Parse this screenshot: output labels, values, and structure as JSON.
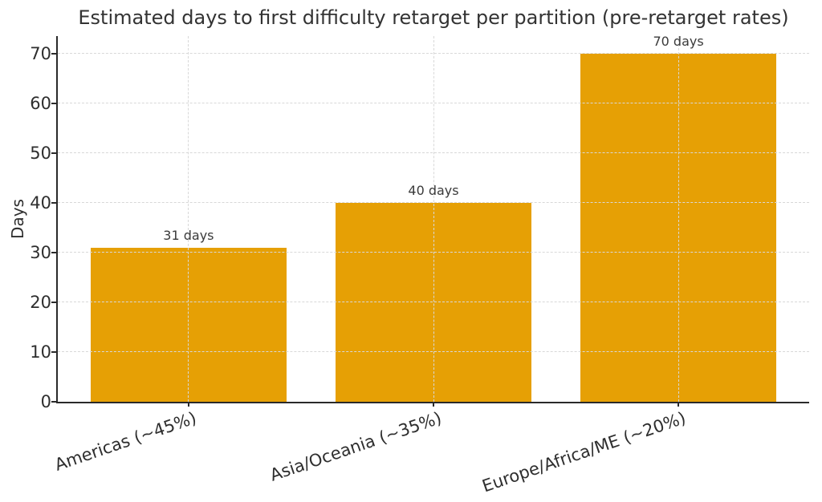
{
  "chart_data": {
    "type": "bar",
    "title": "Estimated days to first difficulty retarget per partition (pre-retarget rates)",
    "ylabel": "Days",
    "xlabel": "",
    "categories": [
      "Americas (~45%)",
      "Asia/Oceania (~35%)",
      "Europe/Africa/ME (~20%)"
    ],
    "values": [
      31,
      40,
      70
    ],
    "bar_labels": [
      "31 days",
      "40 days",
      "70 days"
    ],
    "yticks": [
      0,
      10,
      20,
      30,
      40,
      50,
      60,
      70
    ],
    "ylim": [
      0,
      73.5
    ],
    "xlim": [
      -0.534,
      2.534
    ],
    "bar_width_units": 0.8,
    "x_label_rotation_deg": 19,
    "grid": "dashed horizontal and vertical gridlines, drawn above bars",
    "legend_position": "none",
    "colors": {
      "bar": "#E6A005",
      "grid": "#D8D8D8",
      "axis": "#2A2A2A",
      "title_text": "#333333",
      "tick_text": "#2E2E2E",
      "bar_label_text": "#3A3A3A"
    }
  }
}
